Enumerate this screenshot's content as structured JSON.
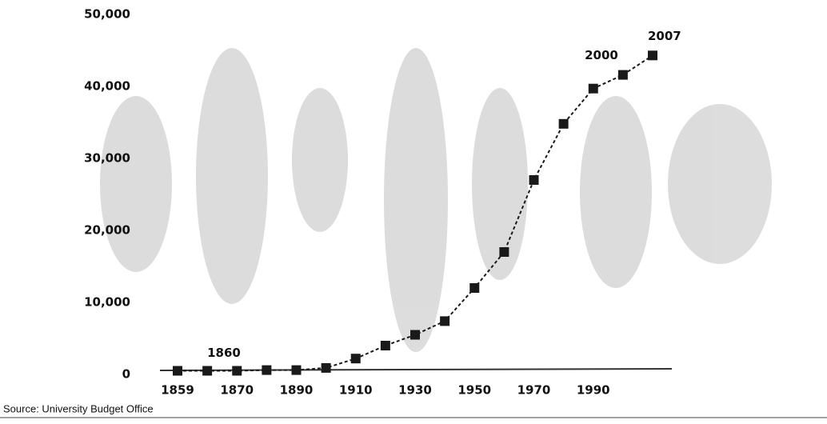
{
  "chart_data": {
    "type": "line",
    "categories": [
      "1859",
      "1860",
      "1870",
      null,
      "1890",
      null,
      "1910",
      null,
      "1930",
      null,
      "1950",
      null,
      "1970",
      null,
      "1990",
      "2000",
      "2007"
    ],
    "series": [
      {
        "color": "#1a1a1a",
        "values": [
          500,
          500,
          500,
          600,
          600,
          900,
          2200,
          4000,
          5500,
          7400,
          12000,
          17000,
          27000,
          34800,
          39700,
          41600,
          44300
        ]
      }
    ],
    "ylim": [
      0,
      50000
    ],
    "yticks": [
      0,
      {
        "value": 10000,
        "label": "10,000"
      },
      {
        "value": 20000,
        "label": "20,000"
      },
      {
        "value": 30000,
        "label": "30,000"
      },
      {
        "value": 40000,
        "label": "40,000"
      },
      {
        "value": 50000,
        "label": "50,000"
      }
    ],
    "grid": false,
    "source": "Source: University Budget Office"
  }
}
